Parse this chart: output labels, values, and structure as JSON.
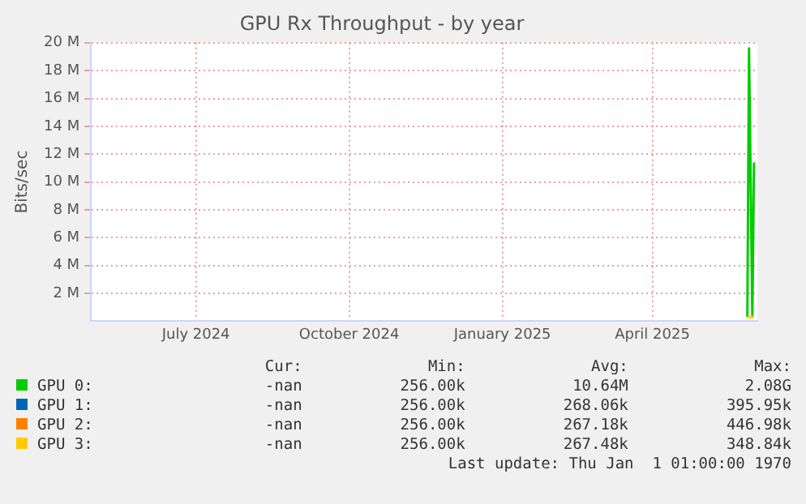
{
  "chart_data": {
    "type": "line",
    "title": "GPU Rx Throughput - by year",
    "ylabel": "Bits/sec",
    "xlim": [
      "2024-04-29",
      "2025-06-03"
    ],
    "xticks": [
      {
        "value": "2024-07-01",
        "label": "July 2024"
      },
      {
        "value": "2024-10-01",
        "label": "October 2024"
      },
      {
        "value": "2025-01-01",
        "label": "January 2025"
      },
      {
        "value": "2025-04-01",
        "label": "April 2025"
      }
    ],
    "ylim": [
      0,
      20000000
    ],
    "yticks": [
      {
        "value": 2000000,
        "label": "2 M"
      },
      {
        "value": 4000000,
        "label": "4 M"
      },
      {
        "value": 6000000,
        "label": "6 M"
      },
      {
        "value": 8000000,
        "label": "8 M"
      },
      {
        "value": 10000000,
        "label": "10 M"
      },
      {
        "value": 12000000,
        "label": "12 M"
      },
      {
        "value": 14000000,
        "label": "14 M"
      },
      {
        "value": 16000000,
        "label": "16 M"
      },
      {
        "value": 18000000,
        "label": "18 M"
      },
      {
        "value": 20000000,
        "label": "20 M"
      }
    ],
    "x": [
      "2025-05-28",
      "2025-05-29",
      "2025-05-31",
      "2025-06-01"
    ],
    "series": [
      {
        "name": "GPU 0:",
        "color": "#00cc00",
        "values": [
          300000,
          19600000,
          300000,
          11400000
        ]
      },
      {
        "name": "GPU 1:",
        "color": "#0066b3",
        "values": [
          null,
          null,
          null,
          null
        ]
      },
      {
        "name": "GPU 2:",
        "color": "#ff8000",
        "values": [
          null,
          null,
          null,
          null
        ]
      },
      {
        "name": "GPU 3:",
        "color": "#ffcc00",
        "values": [
          300000,
          300000,
          300000,
          300000
        ]
      }
    ],
    "grid": true,
    "legend": "bottom",
    "marker": "none",
    "line_style": "solid",
    "annotations": [
      "Cur:",
      "Min:",
      "Avg:",
      "Max:",
      "-nan",
      "256.00k",
      "10.64M",
      "2.08G",
      "-nan",
      "256.00k",
      "268.06k",
      "395.95k",
      "-nan",
      "256.00k",
      "267.18k",
      "446.98k",
      "-nan",
      "256.00k",
      "267.48k",
      "348.84k",
      "Last update: Thu Jan  1 01:00:00 1970"
    ]
  }
}
